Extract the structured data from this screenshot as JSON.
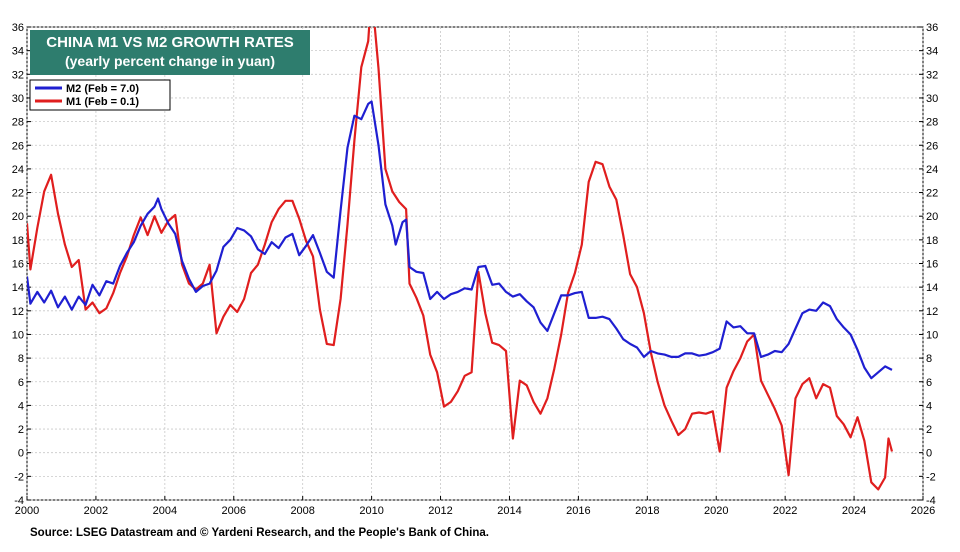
{
  "chart_data": {
    "type": "line",
    "title": "CHINA M1 VS M2 GROWTH RATES",
    "subtitle": "(yearly percent change in yuan)",
    "source": "Source: LSEG Datastream and © Yardeni Research, and the People's Bank of China.",
    "xlim": [
      2000,
      2026
    ],
    "ylim": [
      -4,
      36
    ],
    "x_ticks": [
      "2000",
      "2002",
      "2004",
      "2006",
      "2008",
      "2010",
      "2012",
      "2014",
      "2016",
      "2018",
      "2020",
      "2022",
      "2024",
      "2026"
    ],
    "y_ticks": [
      "-4",
      "-2",
      "0",
      "2",
      "4",
      "6",
      "8",
      "10",
      "12",
      "14",
      "16",
      "18",
      "20",
      "22",
      "24",
      "26",
      "28",
      "30",
      "32",
      "34",
      "36"
    ],
    "grid": true,
    "legend_position": "top-left",
    "series": [
      {
        "name": "M2 (Feb = 7.0)",
        "color": "#1f1fd1",
        "points": [
          [
            2000.0,
            14.9
          ],
          [
            2000.1,
            12.6
          ],
          [
            2000.3,
            13.6
          ],
          [
            2000.5,
            12.7
          ],
          [
            2000.7,
            13.7
          ],
          [
            2000.9,
            12.3
          ],
          [
            2001.1,
            13.2
          ],
          [
            2001.3,
            12.1
          ],
          [
            2001.5,
            13.2
          ],
          [
            2001.7,
            12.5
          ],
          [
            2001.9,
            14.2
          ],
          [
            2002.1,
            13.3
          ],
          [
            2002.3,
            14.5
          ],
          [
            2002.5,
            14.3
          ],
          [
            2002.7,
            15.8
          ],
          [
            2002.9,
            16.9
          ],
          [
            2003.1,
            17.8
          ],
          [
            2003.3,
            19.2
          ],
          [
            2003.5,
            20.2
          ],
          [
            2003.7,
            20.8
          ],
          [
            2003.8,
            21.5
          ],
          [
            2003.9,
            20.6
          ],
          [
            2004.1,
            19.4
          ],
          [
            2004.3,
            18.5
          ],
          [
            2004.5,
            16.2
          ],
          [
            2004.7,
            14.7
          ],
          [
            2004.9,
            13.6
          ],
          [
            2005.1,
            14.1
          ],
          [
            2005.3,
            14.3
          ],
          [
            2005.5,
            15.4
          ],
          [
            2005.7,
            17.4
          ],
          [
            2005.9,
            18.0
          ],
          [
            2006.1,
            19.0
          ],
          [
            2006.3,
            18.8
          ],
          [
            2006.5,
            18.3
          ],
          [
            2006.7,
            17.2
          ],
          [
            2006.9,
            16.8
          ],
          [
            2007.1,
            17.8
          ],
          [
            2007.3,
            17.3
          ],
          [
            2007.5,
            18.2
          ],
          [
            2007.7,
            18.5
          ],
          [
            2007.9,
            16.7
          ],
          [
            2008.1,
            17.5
          ],
          [
            2008.3,
            18.4
          ],
          [
            2008.5,
            16.9
          ],
          [
            2008.7,
            15.3
          ],
          [
            2008.9,
            14.8
          ],
          [
            2009.1,
            20.5
          ],
          [
            2009.3,
            25.8
          ],
          [
            2009.5,
            28.5
          ],
          [
            2009.7,
            28.2
          ],
          [
            2009.9,
            29.5
          ],
          [
            2010.0,
            29.7
          ],
          [
            2010.2,
            26.0
          ],
          [
            2010.4,
            21.0
          ],
          [
            2010.6,
            19.2
          ],
          [
            2010.7,
            17.6
          ],
          [
            2010.9,
            19.5
          ],
          [
            2011.0,
            19.7
          ],
          [
            2011.1,
            15.7
          ],
          [
            2011.3,
            15.3
          ],
          [
            2011.5,
            15.2
          ],
          [
            2011.7,
            13.0
          ],
          [
            2011.9,
            13.6
          ],
          [
            2012.1,
            13.0
          ],
          [
            2012.3,
            13.4
          ],
          [
            2012.5,
            13.6
          ],
          [
            2012.7,
            13.9
          ],
          [
            2012.9,
            13.8
          ],
          [
            2013.1,
            15.7
          ],
          [
            2013.3,
            15.8
          ],
          [
            2013.5,
            14.2
          ],
          [
            2013.7,
            14.3
          ],
          [
            2013.9,
            13.6
          ],
          [
            2014.1,
            13.2
          ],
          [
            2014.3,
            13.4
          ],
          [
            2014.5,
            12.8
          ],
          [
            2014.7,
            12.3
          ],
          [
            2014.9,
            11.0
          ],
          [
            2015.1,
            10.3
          ],
          [
            2015.3,
            11.8
          ],
          [
            2015.5,
            13.3
          ],
          [
            2015.7,
            13.3
          ],
          [
            2015.9,
            13.5
          ],
          [
            2016.1,
            13.6
          ],
          [
            2016.3,
            11.4
          ],
          [
            2016.5,
            11.4
          ],
          [
            2016.7,
            11.5
          ],
          [
            2016.9,
            11.3
          ],
          [
            2017.1,
            10.5
          ],
          [
            2017.3,
            9.6
          ],
          [
            2017.5,
            9.2
          ],
          [
            2017.7,
            8.9
          ],
          [
            2017.9,
            8.1
          ],
          [
            2018.1,
            8.6
          ],
          [
            2018.3,
            8.4
          ],
          [
            2018.5,
            8.3
          ],
          [
            2018.7,
            8.1
          ],
          [
            2018.9,
            8.1
          ],
          [
            2019.1,
            8.4
          ],
          [
            2019.3,
            8.4
          ],
          [
            2019.5,
            8.2
          ],
          [
            2019.7,
            8.3
          ],
          [
            2019.9,
            8.5
          ],
          [
            2020.1,
            8.8
          ],
          [
            2020.3,
            11.1
          ],
          [
            2020.5,
            10.6
          ],
          [
            2020.7,
            10.7
          ],
          [
            2020.9,
            10.1
          ],
          [
            2021.1,
            10.1
          ],
          [
            2021.3,
            8.1
          ],
          [
            2021.5,
            8.3
          ],
          [
            2021.7,
            8.6
          ],
          [
            2021.9,
            8.5
          ],
          [
            2022.1,
            9.2
          ],
          [
            2022.3,
            10.5
          ],
          [
            2022.5,
            11.8
          ],
          [
            2022.7,
            12.1
          ],
          [
            2022.9,
            12.0
          ],
          [
            2023.1,
            12.7
          ],
          [
            2023.3,
            12.4
          ],
          [
            2023.5,
            11.3
          ],
          [
            2023.7,
            10.6
          ],
          [
            2023.9,
            10.0
          ],
          [
            2024.1,
            8.7
          ],
          [
            2024.3,
            7.2
          ],
          [
            2024.5,
            6.3
          ],
          [
            2024.7,
            6.8
          ],
          [
            2024.9,
            7.3
          ],
          [
            2025.1,
            7.0
          ]
        ]
      },
      {
        "name": "M1 (Feb = 0.1)",
        "color": "#e01e1e",
        "points": [
          [
            2000.0,
            19.4
          ],
          [
            2000.1,
            15.5
          ],
          [
            2000.3,
            19.0
          ],
          [
            2000.5,
            22.1
          ],
          [
            2000.7,
            23.5
          ],
          [
            2000.9,
            20.2
          ],
          [
            2001.1,
            17.6
          ],
          [
            2001.3,
            15.7
          ],
          [
            2001.5,
            16.3
          ],
          [
            2001.7,
            12.1
          ],
          [
            2001.9,
            12.7
          ],
          [
            2002.1,
            11.8
          ],
          [
            2002.3,
            12.2
          ],
          [
            2002.5,
            13.5
          ],
          [
            2002.7,
            15.2
          ],
          [
            2002.9,
            16.6
          ],
          [
            2003.1,
            18.4
          ],
          [
            2003.3,
            19.9
          ],
          [
            2003.5,
            18.4
          ],
          [
            2003.7,
            20.0
          ],
          [
            2003.9,
            18.6
          ],
          [
            2004.1,
            19.6
          ],
          [
            2004.3,
            20.1
          ],
          [
            2004.5,
            15.9
          ],
          [
            2004.7,
            14.3
          ],
          [
            2004.9,
            13.8
          ],
          [
            2005.1,
            14.3
          ],
          [
            2005.3,
            15.9
          ],
          [
            2005.5,
            10.1
          ],
          [
            2005.7,
            11.5
          ],
          [
            2005.9,
            12.5
          ],
          [
            2006.1,
            11.9
          ],
          [
            2006.3,
            13.0
          ],
          [
            2006.5,
            15.2
          ],
          [
            2006.7,
            15.9
          ],
          [
            2006.9,
            17.6
          ],
          [
            2007.1,
            19.5
          ],
          [
            2007.3,
            20.6
          ],
          [
            2007.5,
            21.3
          ],
          [
            2007.7,
            21.3
          ],
          [
            2007.9,
            19.8
          ],
          [
            2008.1,
            17.9
          ],
          [
            2008.3,
            16.6
          ],
          [
            2008.5,
            12.1
          ],
          [
            2008.7,
            9.2
          ],
          [
            2008.9,
            9.1
          ],
          [
            2009.1,
            13.0
          ],
          [
            2009.3,
            19.3
          ],
          [
            2009.5,
            26.4
          ],
          [
            2009.7,
            32.6
          ],
          [
            2009.9,
            34.8
          ],
          [
            2010.0,
            39.0
          ],
          [
            2010.2,
            32.5
          ],
          [
            2010.4,
            24.0
          ],
          [
            2010.6,
            22.1
          ],
          [
            2010.8,
            21.2
          ],
          [
            2011.0,
            20.6
          ],
          [
            2011.1,
            14.3
          ],
          [
            2011.3,
            13.1
          ],
          [
            2011.5,
            11.6
          ],
          [
            2011.7,
            8.3
          ],
          [
            2011.9,
            6.8
          ],
          [
            2012.1,
            3.9
          ],
          [
            2012.3,
            4.3
          ],
          [
            2012.5,
            5.2
          ],
          [
            2012.7,
            6.5
          ],
          [
            2012.9,
            6.8
          ],
          [
            2013.1,
            15.3
          ],
          [
            2013.3,
            11.8
          ],
          [
            2013.5,
            9.3
          ],
          [
            2013.7,
            9.1
          ],
          [
            2013.9,
            8.6
          ],
          [
            2014.1,
            1.2
          ],
          [
            2014.3,
            6.1
          ],
          [
            2014.5,
            5.7
          ],
          [
            2014.7,
            4.3
          ],
          [
            2014.9,
            3.3
          ],
          [
            2015.1,
            4.6
          ],
          [
            2015.3,
            7.1
          ],
          [
            2015.5,
            10.0
          ],
          [
            2015.7,
            13.5
          ],
          [
            2015.9,
            15.2
          ],
          [
            2016.1,
            17.6
          ],
          [
            2016.3,
            22.9
          ],
          [
            2016.5,
            24.6
          ],
          [
            2016.7,
            24.4
          ],
          [
            2016.9,
            22.5
          ],
          [
            2017.1,
            21.4
          ],
          [
            2017.3,
            18.4
          ],
          [
            2017.5,
            15.1
          ],
          [
            2017.7,
            14.0
          ],
          [
            2017.9,
            11.8
          ],
          [
            2018.1,
            8.5
          ],
          [
            2018.3,
            6.0
          ],
          [
            2018.5,
            4.0
          ],
          [
            2018.7,
            2.7
          ],
          [
            2018.9,
            1.5
          ],
          [
            2019.1,
            2.0
          ],
          [
            2019.3,
            3.3
          ],
          [
            2019.5,
            3.4
          ],
          [
            2019.7,
            3.3
          ],
          [
            2019.9,
            3.5
          ],
          [
            2020.1,
            0.1
          ],
          [
            2020.3,
            5.5
          ],
          [
            2020.5,
            6.9
          ],
          [
            2020.7,
            8.0
          ],
          [
            2020.9,
            9.4
          ],
          [
            2021.1,
            10.0
          ],
          [
            2021.3,
            6.1
          ],
          [
            2021.5,
            4.9
          ],
          [
            2021.7,
            3.7
          ],
          [
            2021.9,
            2.3
          ],
          [
            2022.1,
            -1.9
          ],
          [
            2022.3,
            4.6
          ],
          [
            2022.5,
            5.8
          ],
          [
            2022.7,
            6.3
          ],
          [
            2022.9,
            4.6
          ],
          [
            2023.1,
            5.8
          ],
          [
            2023.3,
            5.5
          ],
          [
            2023.5,
            3.1
          ],
          [
            2023.7,
            2.4
          ],
          [
            2023.9,
            1.3
          ],
          [
            2024.1,
            3.0
          ],
          [
            2024.3,
            1.0
          ],
          [
            2024.5,
            -2.5
          ],
          [
            2024.7,
            -3.1
          ],
          [
            2024.9,
            -2.1
          ],
          [
            2025.0,
            1.2
          ],
          [
            2025.1,
            0.1
          ]
        ]
      }
    ]
  }
}
